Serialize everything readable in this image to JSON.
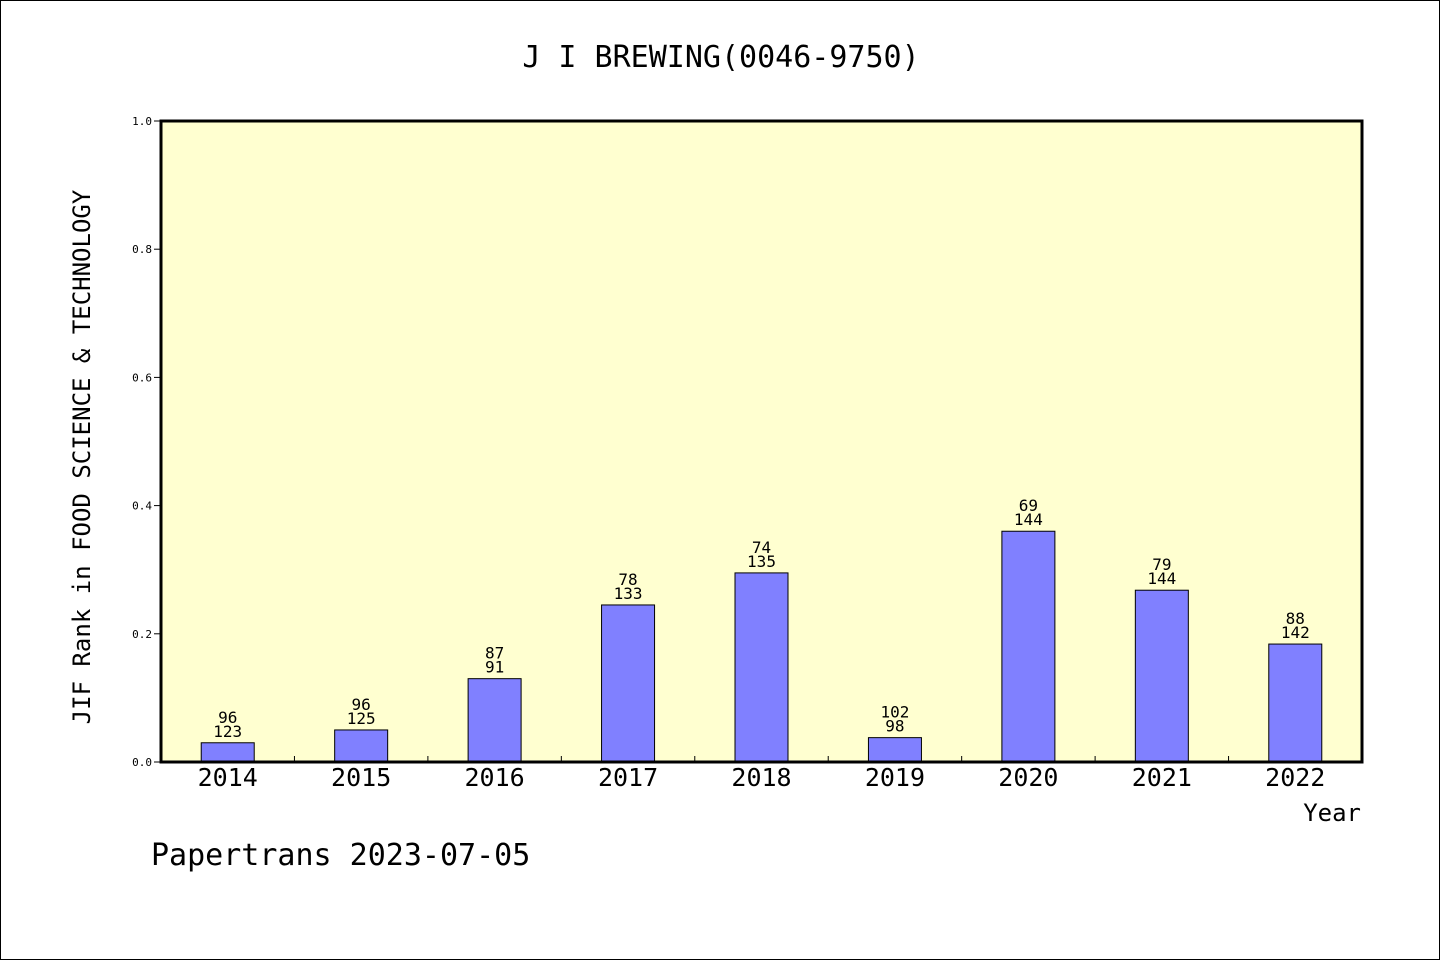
{
  "chart_data": {
    "type": "bar",
    "title": "J I BREWING(0046-9750)",
    "xlabel": "Year",
    "ylabel": "JIF Rank in FOOD SCIENCE & TECHNOLOGY",
    "categories": [
      "2014",
      "2015",
      "2016",
      "2017",
      "2018",
      "2019",
      "2020",
      "2021",
      "2022"
    ],
    "values": [
      0.03,
      0.05,
      0.13,
      0.245,
      0.295,
      0.038,
      0.36,
      0.268,
      0.184
    ],
    "bar_labels": [
      [
        "96",
        "123"
      ],
      [
        "96",
        "125"
      ],
      [
        "87",
        "91"
      ],
      [
        "78",
        "133"
      ],
      [
        "74",
        "135"
      ],
      [
        "102",
        "98"
      ],
      [
        "69",
        "144"
      ],
      [
        "79",
        "144"
      ],
      [
        "88",
        "142"
      ]
    ],
    "ylim": [
      0,
      1.0
    ],
    "yticks": [
      "0.0",
      "0.2",
      "0.4",
      "0.6",
      "0.8",
      "1.0"
    ],
    "grid": false,
    "colors": {
      "plot_bg": "#ffffd0",
      "bar_fill": "#8080ff",
      "bar_stroke": "#000000"
    }
  },
  "footer": {
    "credit": "Papertrans 2023-07-05"
  }
}
